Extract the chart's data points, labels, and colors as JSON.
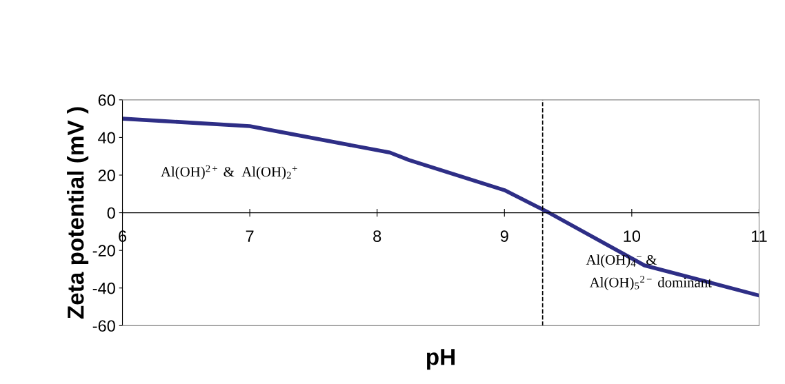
{
  "chart_data": {
    "type": "line",
    "xlabel": "pH",
    "ylabel": "Zeta potential (mV )",
    "x": [
      6,
      7,
      8.1,
      8.25,
      9,
      9.35,
      10.1,
      11
    ],
    "series": [
      {
        "color": "#2e2e86",
        "values": [
          50,
          46,
          32,
          28,
          12,
          0,
          -28,
          -44
        ]
      }
    ],
    "xlim": [
      6,
      11
    ],
    "xticks": [
      6,
      7,
      8,
      9,
      10,
      11
    ],
    "ylim": [
      -60,
      60
    ],
    "yticks": [
      -60,
      -40,
      -20,
      0,
      20,
      40,
      60
    ],
    "ref_lines": [
      {
        "axis": "x",
        "value": 9.3,
        "color": "#000000",
        "line_style": "dashed"
      }
    ],
    "annotations": [
      "Al(OH)$^{2+}$ &  Al(OH)$_{2}$$^{+}$",
      "Al(OH)$_{4}$$^{−}$ &",
      " Al(OH)$_{5}$$^{2−}$ dominant"
    ],
    "grid": false,
    "legend": false,
    "marker": "none",
    "line_style": "solid"
  }
}
